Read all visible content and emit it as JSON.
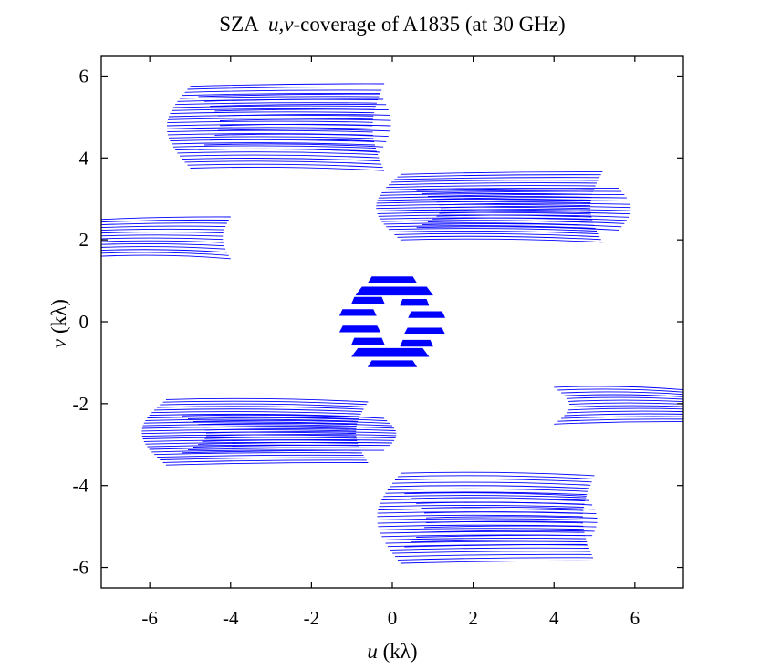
{
  "chart_data": {
    "type": "scatter",
    "title": {
      "prefix": "SZA  ",
      "italic": "u,v",
      "suffix": "-coverage of A1835 (at 30 GHz)"
    },
    "xlabel": {
      "italic": "u",
      "rest": " (kλ)"
    },
    "ylabel": {
      "italic": "v",
      "rest": " (kλ)"
    },
    "xlim": [
      -7.2,
      7.2
    ],
    "ylim": [
      -6.5,
      6.5
    ],
    "xticks": [
      -6,
      -4,
      -2,
      0,
      2,
      4,
      6
    ],
    "yticks": [
      -6,
      -4,
      -2,
      0,
      2,
      4,
      6
    ],
    "grid": false,
    "color": "#0000ff",
    "series": [
      {
        "tracks": [
          {
            "u0": -5.0,
            "u1": -0.2,
            "v0": 5.75,
            "v1": 3.75,
            "n": 28
          },
          {
            "u0": -4.8,
            "u1": -0.3,
            "v0": 5.5,
            "v1": 4.2,
            "n": 12
          },
          {
            "u0": 0.2,
            "u1": 5.2,
            "v0": 3.6,
            "v1": 2.0,
            "n": 26
          },
          {
            "u0": 0.6,
            "u1": 5.6,
            "v0": 3.2,
            "v1": 2.3,
            "n": 14
          },
          {
            "u0": -7.2,
            "u1": -4.0,
            "v0": 2.5,
            "v1": 1.6,
            "n": 14
          },
          {
            "u0": 4.0,
            "u1": 7.2,
            "v0": -1.6,
            "v1": -2.5,
            "n": 14
          },
          {
            "u0": -5.6,
            "u1": -0.6,
            "v0": -1.9,
            "v1": -3.5,
            "n": 26
          },
          {
            "u0": -5.2,
            "u1": -0.2,
            "v0": -2.3,
            "v1": -3.2,
            "n": 14
          },
          {
            "u0": 0.2,
            "u1": 5.0,
            "v0": -3.7,
            "v1": -5.9,
            "n": 28
          },
          {
            "u0": 0.3,
            "u1": 4.8,
            "v0": -4.2,
            "v1": -5.5,
            "n": 12
          }
        ],
        "center_blocks": [
          {
            "u0": -0.6,
            "u1": 0.6,
            "v0": 1.1,
            "v1": 0.95
          },
          {
            "u0": -0.9,
            "u1": 1.0,
            "v0": 0.85,
            "v1": 0.65
          },
          {
            "u0": -1.0,
            "u1": -0.2,
            "v0": 0.6,
            "v1": 0.45
          },
          {
            "u0": 0.2,
            "u1": 0.9,
            "v0": 0.55,
            "v1": 0.4
          },
          {
            "u0": -1.3,
            "u1": -0.4,
            "v0": 0.3,
            "v1": 0.15
          },
          {
            "u0": 0.4,
            "u1": 1.3,
            "v0": 0.25,
            "v1": 0.1
          },
          {
            "u0": -1.3,
            "u1": -0.3,
            "v0": -0.1,
            "v1": -0.25
          },
          {
            "u0": 0.3,
            "u1": 1.3,
            "v0": -0.15,
            "v1": -0.3
          },
          {
            "u0": -1.0,
            "u1": -0.2,
            "v0": -0.4,
            "v1": -0.55
          },
          {
            "u0": 0.2,
            "u1": 1.0,
            "v0": -0.45,
            "v1": -0.6
          },
          {
            "u0": -1.0,
            "u1": 0.9,
            "v0": -0.65,
            "v1": -0.85
          },
          {
            "u0": -0.6,
            "u1": 0.6,
            "v0": -0.95,
            "v1": -1.1
          }
        ]
      }
    ]
  }
}
